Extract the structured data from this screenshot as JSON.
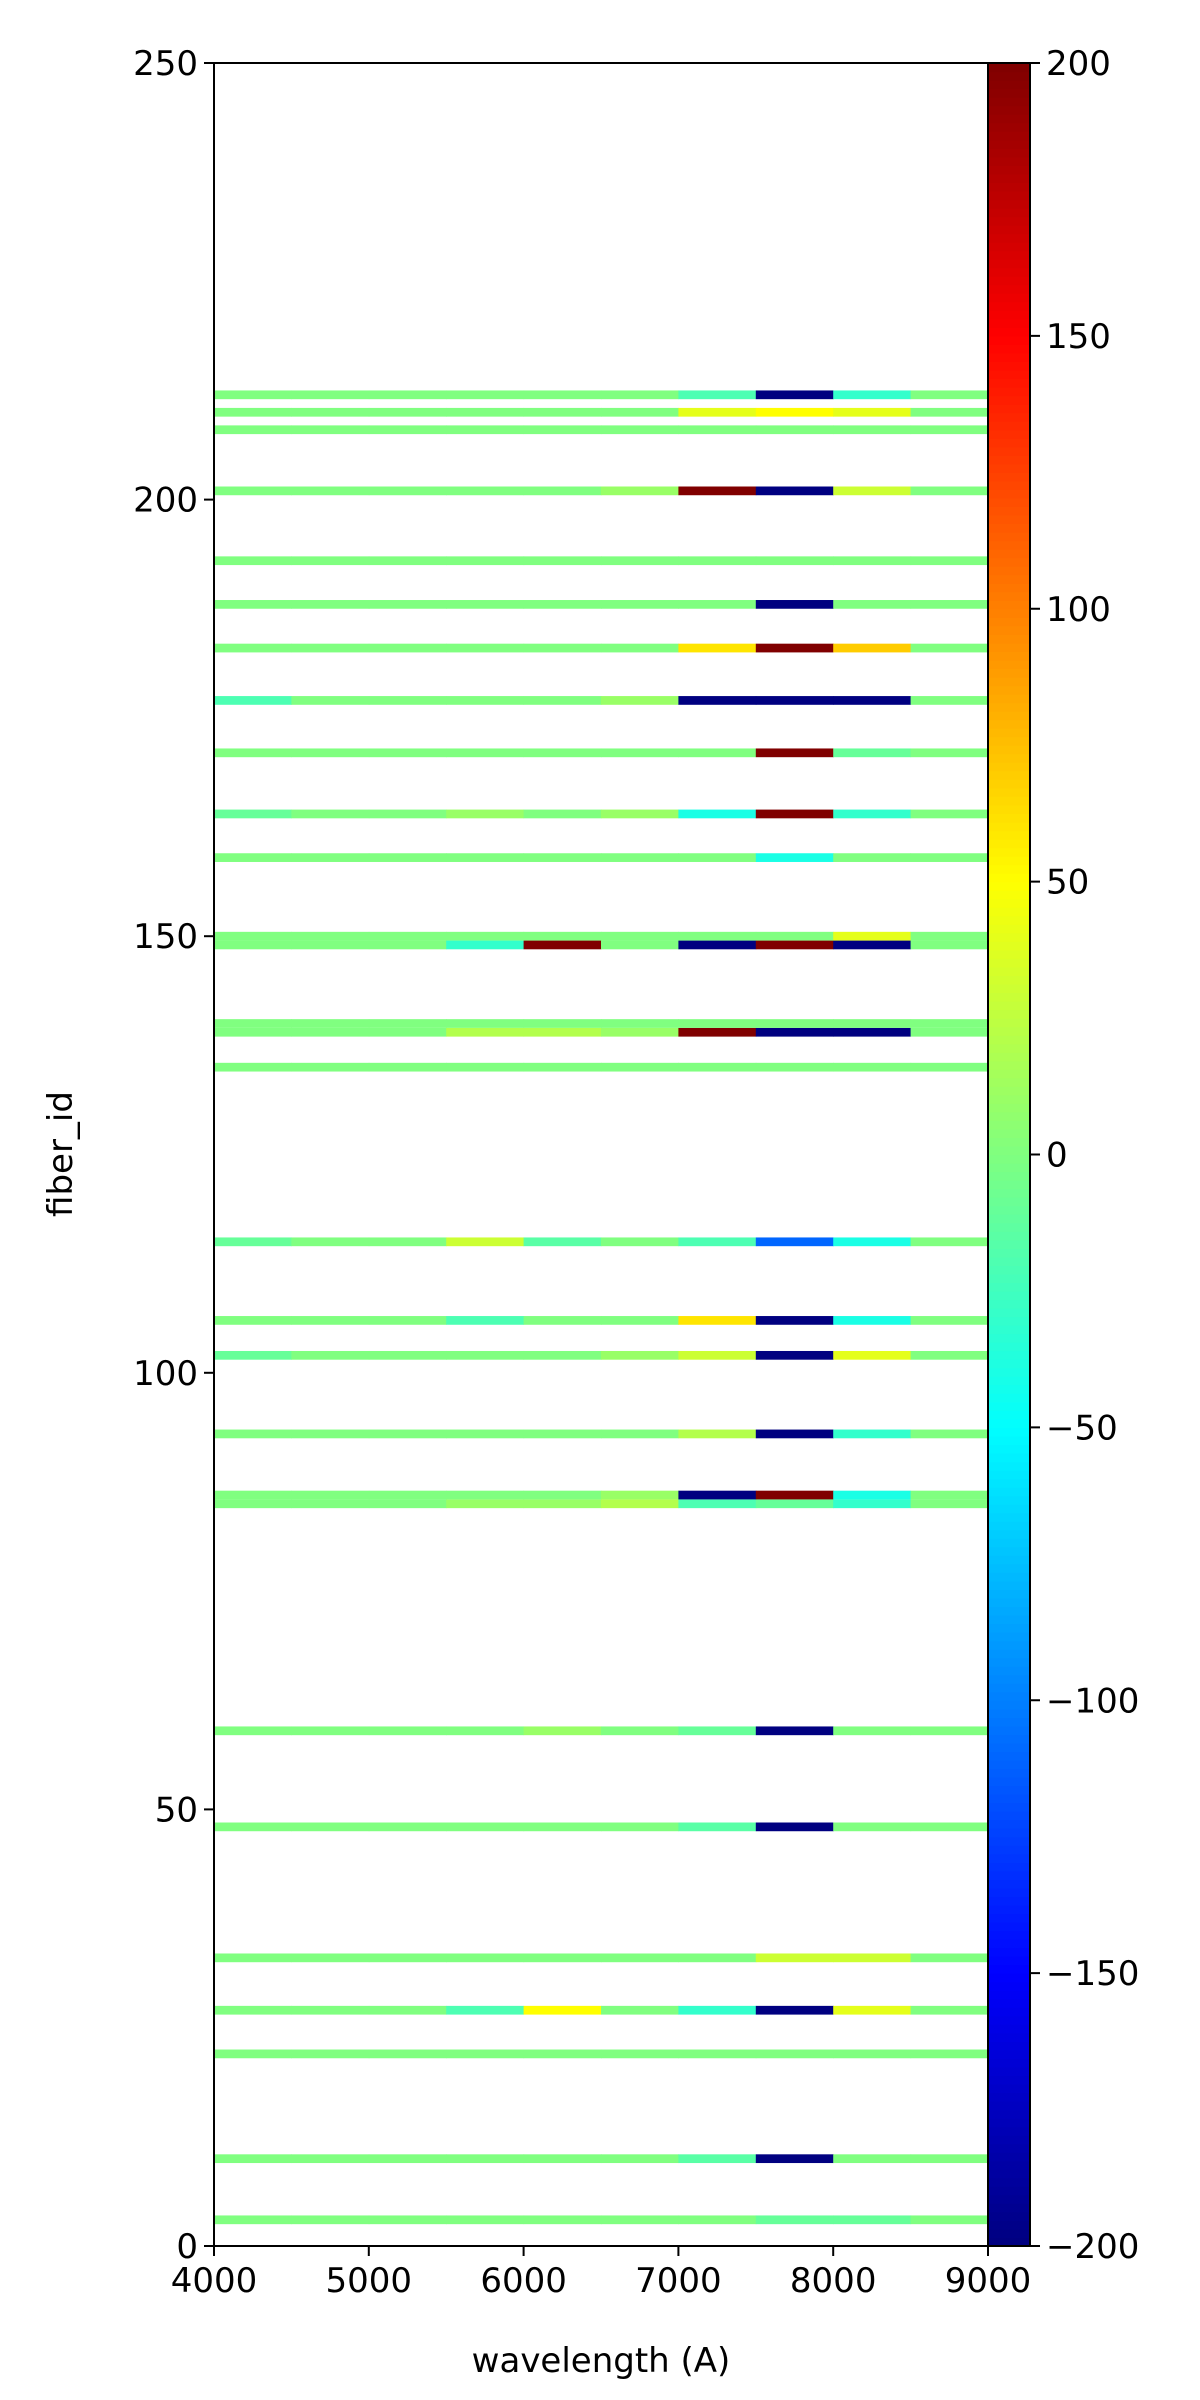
{
  "chart_data": {
    "type": "heatmap",
    "title": "",
    "xlabel": "wavelength (A)",
    "ylabel": "fiber_id",
    "xlim": [
      4000,
      9000
    ],
    "ylim": [
      0,
      250
    ],
    "xticks": [
      4000,
      5000,
      6000,
      7000,
      8000,
      9000
    ],
    "yticks": [
      0,
      50,
      100,
      150,
      200,
      250
    ],
    "x_bin_edges": [
      4000,
      4500,
      5000,
      5500,
      6000,
      6500,
      7000,
      7500,
      8000,
      8500,
      9000
    ],
    "colormap": "jet",
    "color_range": [
      -200,
      200
    ],
    "colorbar_ticks": [
      -200,
      -150,
      -100,
      -50,
      0,
      50,
      100,
      150,
      200
    ],
    "colorbar_tick_labels": [
      "−200",
      "−150",
      "−100",
      "−50",
      "0",
      "50",
      "100",
      "150",
      "200"
    ],
    "grid": false,
    "rows": [
      {
        "fiber_id": 3,
        "values": [
          0,
          0,
          0,
          0,
          0,
          0,
          0,
          -10,
          -10,
          0
        ]
      },
      {
        "fiber_id": 10,
        "values": [
          0,
          0,
          0,
          0,
          0,
          0,
          -15,
          -200,
          0,
          0
        ]
      },
      {
        "fiber_id": 22,
        "values": [
          0,
          0,
          0,
          0,
          0,
          0,
          0,
          0,
          0,
          0
        ]
      },
      {
        "fiber_id": 27,
        "values": [
          0,
          0,
          0,
          -20,
          50,
          0,
          -30,
          -200,
          40,
          0
        ]
      },
      {
        "fiber_id": 33,
        "values": [
          0,
          0,
          0,
          0,
          0,
          0,
          0,
          30,
          30,
          0
        ]
      },
      {
        "fiber_id": 48,
        "values": [
          0,
          0,
          0,
          0,
          0,
          0,
          -15,
          -200,
          0,
          0
        ]
      },
      {
        "fiber_id": 59,
        "values": [
          0,
          0,
          0,
          0,
          10,
          0,
          -10,
          -200,
          0,
          0
        ]
      },
      {
        "fiber_id": 85,
        "values": [
          0,
          0,
          0,
          10,
          10,
          20,
          -20,
          -10,
          -30,
          0
        ]
      },
      {
        "fiber_id": 86,
        "values": [
          0,
          0,
          0,
          0,
          0,
          10,
          -200,
          200,
          -40,
          0
        ]
      },
      {
        "fiber_id": 93,
        "values": [
          0,
          0,
          0,
          0,
          0,
          0,
          20,
          -200,
          -30,
          0
        ]
      },
      {
        "fiber_id": 102,
        "values": [
          -10,
          0,
          0,
          0,
          0,
          10,
          30,
          -200,
          40,
          0
        ]
      },
      {
        "fiber_id": 106,
        "values": [
          0,
          0,
          0,
          -20,
          0,
          0,
          60,
          -200,
          -40,
          0
        ]
      },
      {
        "fiber_id": 115,
        "values": [
          -10,
          0,
          0,
          30,
          -15,
          0,
          -20,
          -110,
          -40,
          0
        ]
      },
      {
        "fiber_id": 135,
        "values": [
          0,
          0,
          0,
          0,
          0,
          0,
          0,
          0,
          0,
          0
        ]
      },
      {
        "fiber_id": 139,
        "values": [
          0,
          0,
          0,
          20,
          20,
          10,
          200,
          -200,
          -200,
          0
        ]
      },
      {
        "fiber_id": 140,
        "values": [
          0,
          0,
          0,
          0,
          0,
          0,
          0,
          0,
          0,
          0
        ]
      },
      {
        "fiber_id": 149,
        "values": [
          0,
          0,
          0,
          -30,
          200,
          0,
          -200,
          200,
          -200,
          0
        ]
      },
      {
        "fiber_id": 150,
        "values": [
          0,
          0,
          0,
          0,
          0,
          0,
          0,
          0,
          40,
          0
        ]
      },
      {
        "fiber_id": 159,
        "values": [
          0,
          0,
          0,
          0,
          0,
          0,
          0,
          -40,
          0,
          0
        ]
      },
      {
        "fiber_id": 164,
        "values": [
          -10,
          0,
          0,
          10,
          0,
          10,
          -40,
          200,
          -30,
          0
        ]
      },
      {
        "fiber_id": 171,
        "values": [
          0,
          0,
          0,
          0,
          0,
          0,
          0,
          200,
          -10,
          0
        ]
      },
      {
        "fiber_id": 177,
        "values": [
          -20,
          0,
          0,
          0,
          0,
          10,
          -200,
          -200,
          -200,
          0
        ]
      },
      {
        "fiber_id": 183,
        "values": [
          0,
          0,
          0,
          0,
          0,
          0,
          60,
          200,
          70,
          0
        ]
      },
      {
        "fiber_id": 188,
        "values": [
          0,
          0,
          0,
          0,
          0,
          0,
          0,
          -200,
          0,
          0
        ]
      },
      {
        "fiber_id": 193,
        "values": [
          0,
          0,
          0,
          0,
          0,
          0,
          0,
          0,
          0,
          0
        ]
      },
      {
        "fiber_id": 201,
        "values": [
          0,
          0,
          0,
          0,
          0,
          10,
          200,
          -200,
          30,
          0
        ]
      },
      {
        "fiber_id": 208,
        "values": [
          0,
          0,
          0,
          0,
          0,
          0,
          0,
          0,
          0,
          0
        ]
      },
      {
        "fiber_id": 210,
        "values": [
          0,
          0,
          0,
          0,
          0,
          0,
          40,
          50,
          40,
          0
        ]
      },
      {
        "fiber_id": 212,
        "values": [
          0,
          0,
          0,
          0,
          0,
          0,
          -20,
          -200,
          -30,
          0
        ]
      }
    ]
  }
}
